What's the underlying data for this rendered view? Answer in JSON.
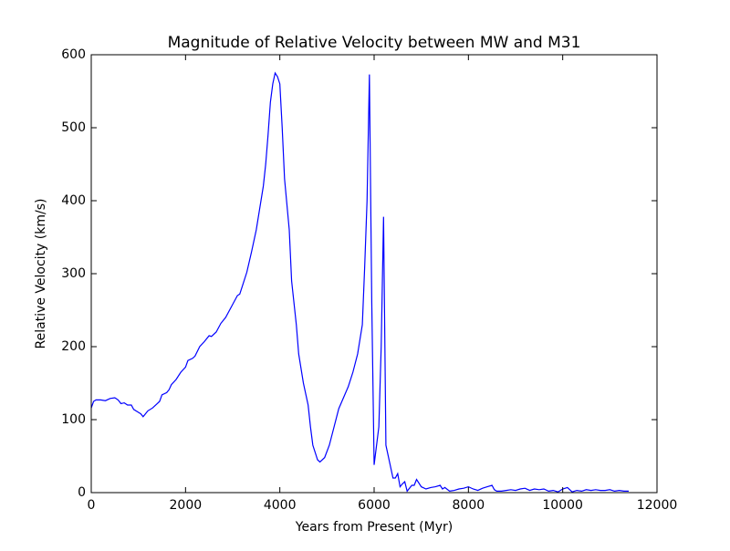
{
  "chart_data": {
    "type": "line",
    "title": "Magnitude of Relative Velocity between MW and M31",
    "x_label": "Years from Present (Myr)",
    "y_label": "Relative Velocity (km/s)",
    "color": "#0000ff",
    "xlim": [
      0,
      12000
    ],
    "xticks": [
      0,
      2000,
      4000,
      6000,
      8000,
      10000,
      12000
    ],
    "ylim": [
      0,
      600
    ],
    "yticks": [
      0,
      100,
      200,
      300,
      400,
      500,
      600
    ],
    "x": [
      0,
      50,
      100,
      200,
      300,
      400,
      500,
      570,
      630,
      700,
      770,
      850,
      900,
      1000,
      1050,
      1100,
      1150,
      1200,
      1300,
      1400,
      1450,
      1500,
      1600,
      1650,
      1700,
      1800,
      1900,
      2000,
      2050,
      2150,
      2200,
      2300,
      2400,
      2500,
      2550,
      2650,
      2750,
      2850,
      3000,
      3100,
      3150,
      3200,
      3300,
      3400,
      3500,
      3600,
      3650,
      3700,
      3750,
      3800,
      3850,
      3900,
      3950,
      4000,
      4050,
      4100,
      4200,
      4250,
      4350,
      4400,
      4500,
      4600,
      4650,
      4700,
      4800,
      4850,
      4950,
      5050,
      5150,
      5250,
      5350,
      5450,
      5550,
      5650,
      5750,
      5800,
      5850,
      5900,
      5950,
      6000,
      6100,
      6150,
      6200,
      6250,
      6300,
      6400,
      6450,
      6500,
      6550,
      6600,
      6650,
      6700,
      6800,
      6850,
      6900,
      7000,
      7100,
      7200,
      7300,
      7400,
      7450,
      7500,
      7600,
      7700,
      7800,
      7900,
      8000,
      8100,
      8200,
      8300,
      8400,
      8500,
      8550,
      8600,
      8700,
      8800,
      8900,
      9000,
      9100,
      9200,
      9300,
      9400,
      9500,
      9600,
      9700,
      9800,
      9900,
      10000,
      10100,
      10200,
      10300,
      10400,
      10500,
      10600,
      10700,
      10800,
      10900,
      11000,
      11100,
      11200,
      11300,
      11400
    ],
    "values": [
      116,
      125,
      127,
      127,
      126,
      129,
      130,
      127,
      122,
      123,
      120,
      120,
      114,
      110,
      108,
      104,
      108,
      112,
      116,
      122,
      125,
      134,
      137,
      141,
      148,
      155,
      165,
      172,
      181,
      184,
      187,
      200,
      207,
      215,
      214,
      220,
      232,
      240,
      258,
      270,
      272,
      282,
      302,
      330,
      360,
      400,
      420,
      450,
      490,
      535,
      560,
      575,
      570,
      560,
      500,
      430,
      360,
      290,
      230,
      190,
      150,
      120,
      90,
      65,
      45,
      42,
      48,
      65,
      90,
      115,
      130,
      145,
      165,
      190,
      230,
      310,
      400,
      573,
      260,
      38,
      90,
      200,
      378,
      65,
      50,
      20,
      20,
      26,
      8,
      12,
      15,
      2,
      10,
      10,
      18,
      8,
      5,
      7,
      8,
      10,
      5,
      7,
      2,
      3,
      5,
      6,
      8,
      5,
      3,
      6,
      8,
      10,
      4,
      2,
      2,
      3,
      4,
      3,
      5,
      6,
      3,
      5,
      4,
      5,
      2,
      3,
      1,
      5,
      7,
      1,
      3,
      2,
      4,
      3,
      4,
      3,
      3,
      4,
      2,
      3,
      2,
      2
    ]
  }
}
